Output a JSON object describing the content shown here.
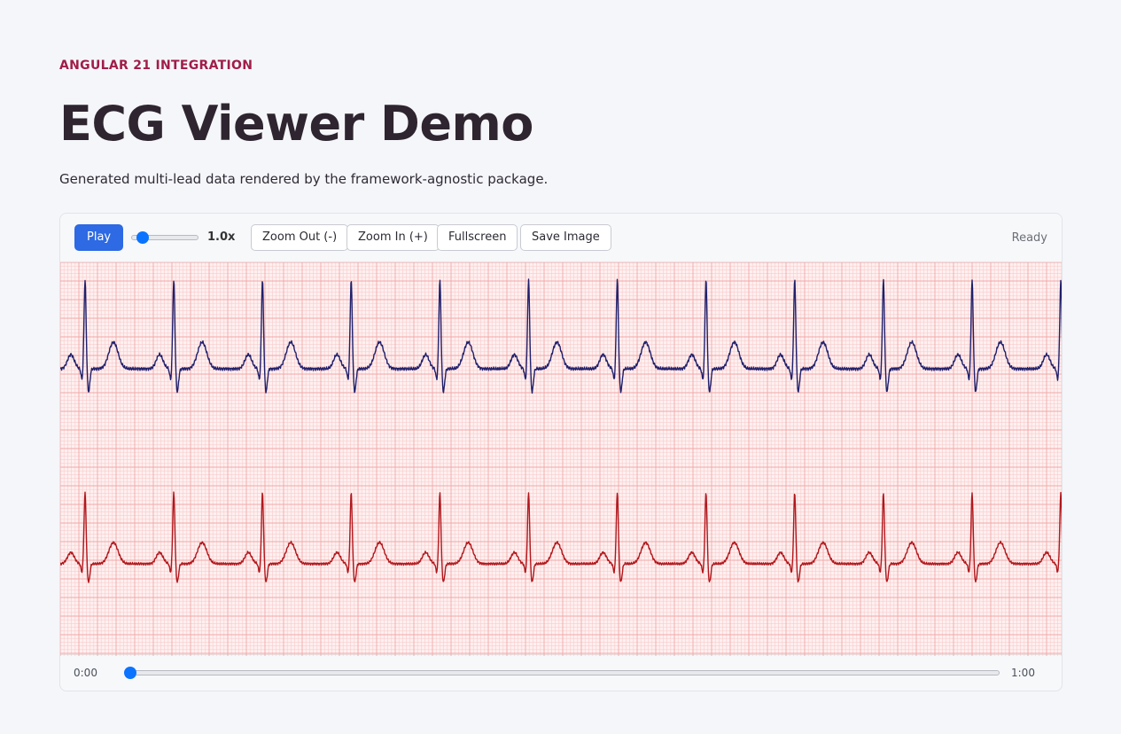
{
  "header": {
    "eyebrow": "ANGULAR 21 INTEGRATION",
    "title": "ECG Viewer Demo",
    "subtitle": "Generated multi-lead data rendered by the framework-agnostic package."
  },
  "toolbar": {
    "play_label": "Play",
    "speed_value": 0.1,
    "speed_label": "1.0x",
    "zoom_out_label": "Zoom Out (-)",
    "zoom_in_label": "Zoom In (+)",
    "fullscreen_label": "Fullscreen",
    "save_image_label": "Save Image",
    "status": "Ready"
  },
  "timeline": {
    "start": "0:00",
    "end": "1:00",
    "position": 0
  },
  "ecg": {
    "grid_background": "#fff0f0",
    "leads": [
      {
        "color": "#1f1f6b"
      },
      {
        "color": "#b0171c"
      }
    ]
  },
  "colors": {
    "accent": "#2d6ae3",
    "eyebrow": "#a11d48",
    "slider_thumb": "#0a74ff"
  }
}
